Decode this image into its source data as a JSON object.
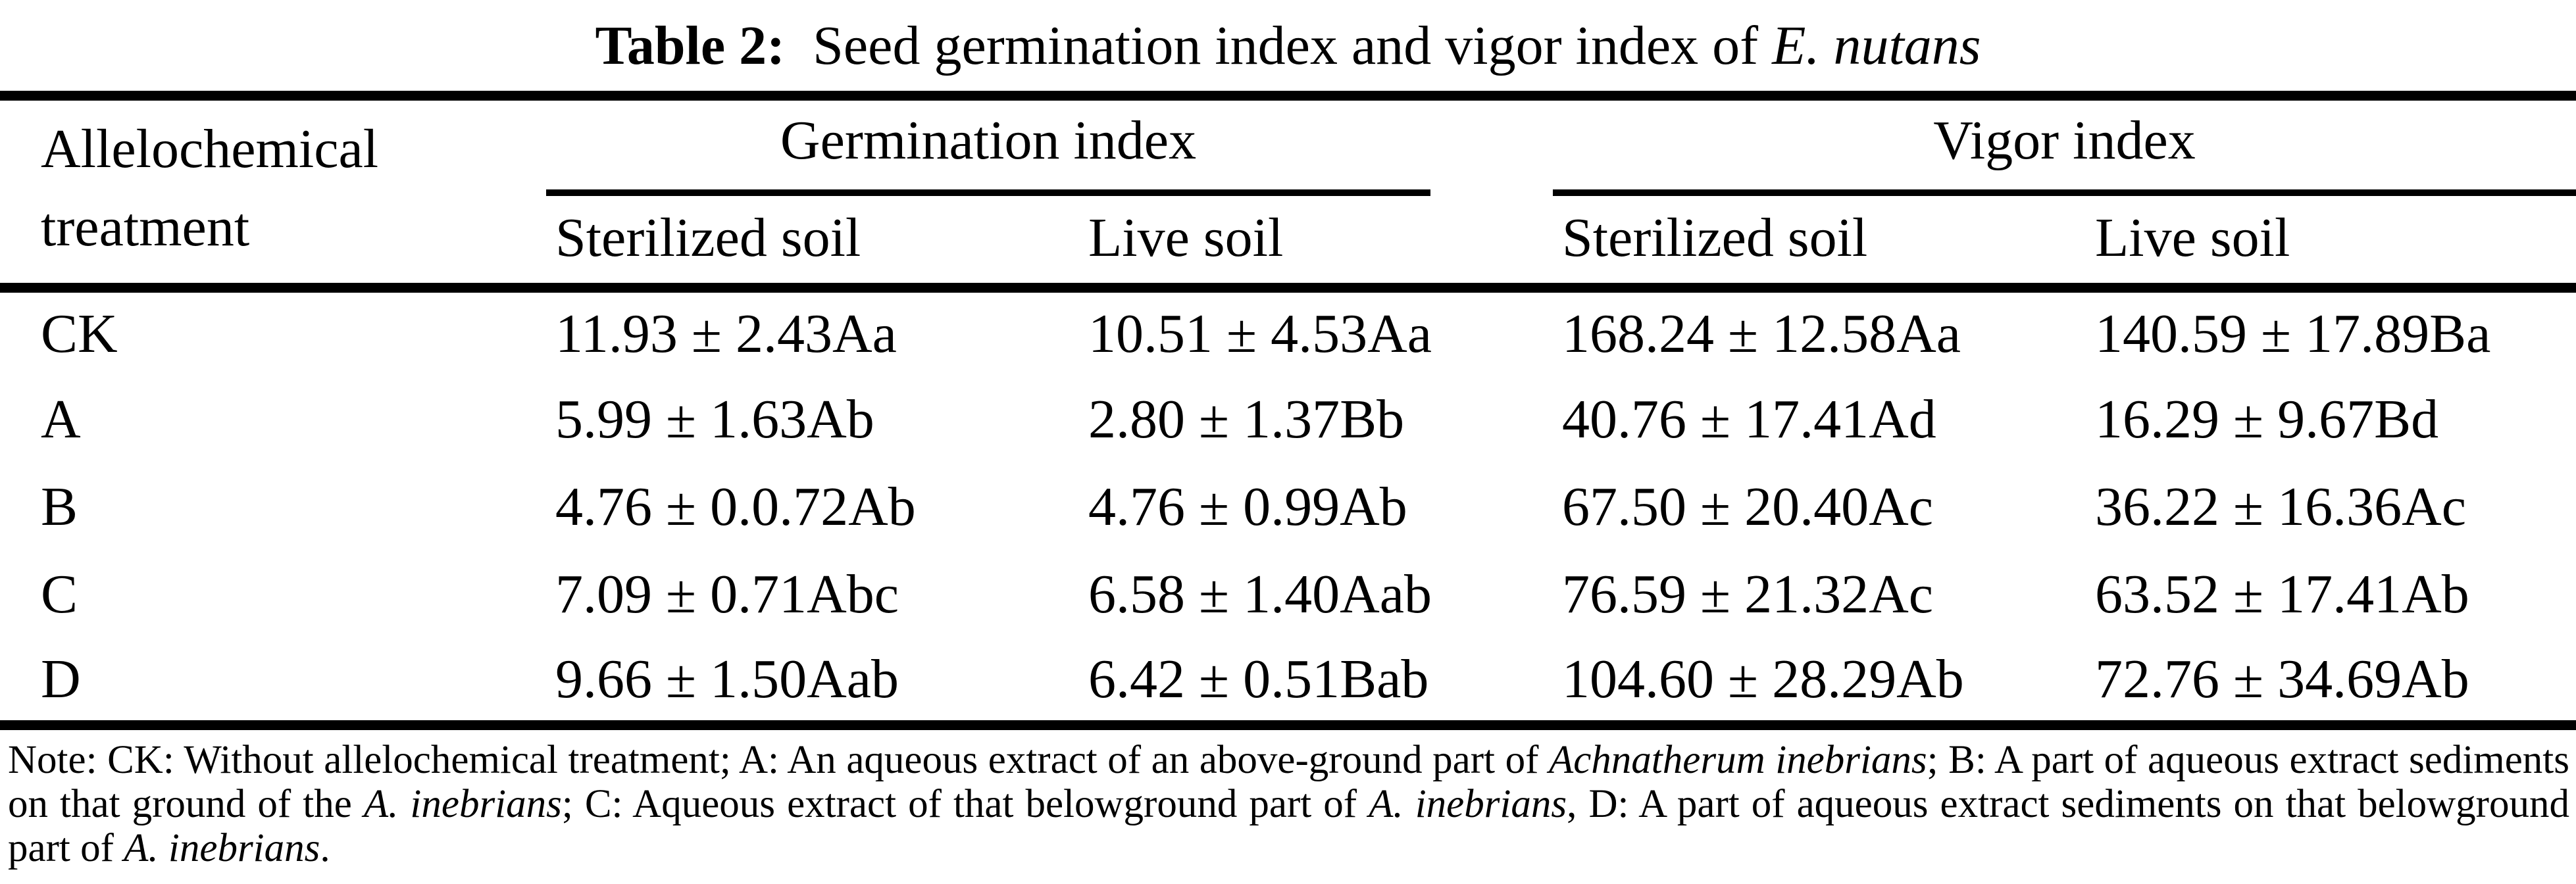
{
  "title": {
    "segments": [
      {
        "text": "Table 2:",
        "bold": true
      },
      {
        "text": "  Seed germination index and vigor index of "
      },
      {
        "text": "E. nutans",
        "italic": true
      }
    ]
  },
  "table": {
    "col1_header": "Allelochemical treatment",
    "groups": [
      {
        "label": "Germination index"
      },
      {
        "label": "Vigor index"
      }
    ],
    "subheaders": [
      "Sterilized soil",
      "Live soil",
      "Sterilized soil",
      "Live soil"
    ],
    "rows": [
      {
        "treatment": "CK",
        "values": [
          "11.93 ± 2.43Aa",
          "10.51 ± 4.53Aa",
          "168.24 ± 12.58Aa",
          "140.59 ± 17.89Ba"
        ]
      },
      {
        "treatment": "A",
        "values": [
          "5.99 ± 1.63Ab",
          "2.80 ± 1.37Bb",
          "40.76 ± 17.41Ad",
          "16.29 ± 9.67Bd"
        ]
      },
      {
        "treatment": "B",
        "values": [
          "4.76 ± 0.0.72Ab",
          "4.76 ± 0.99Ab",
          "67.50 ± 20.40Ac",
          "36.22 ± 16.36Ac"
        ]
      },
      {
        "treatment": "C",
        "values": [
          "7.09 ± 0.71Abc",
          "6.58 ± 1.40Aab",
          "76.59 ± 21.32Ac",
          "63.52 ± 17.41Ab"
        ]
      },
      {
        "treatment": "D",
        "values": [
          "9.66 ± 1.50Aab",
          "6.42 ± 0.51Bab",
          "104.60 ± 28.29Ab",
          "72.76 ± 34.69Ab"
        ]
      }
    ]
  },
  "note": {
    "segments": [
      {
        "text": "Note: CK: Without allelochemical treatment; A: An aqueous extract of an above-ground part of "
      },
      {
        "text": "Achnatherum inebrians",
        "italic": true
      },
      {
        "text": "; B: A part of aqueous extract sediments on that ground of the "
      },
      {
        "text": "A. inebrians",
        "italic": true
      },
      {
        "text": "; C: Aqueous extract of that belowground part of "
      },
      {
        "text": "A. inebrians",
        "italic": true
      },
      {
        "text": ", D: A part of aqueous extract sediments on that belowground part of "
      },
      {
        "text": "A. inebrians",
        "italic": true
      },
      {
        "text": "."
      }
    ]
  },
  "colors": {
    "text": "#000000",
    "background": "#ffffff",
    "rule": "#000000"
  }
}
